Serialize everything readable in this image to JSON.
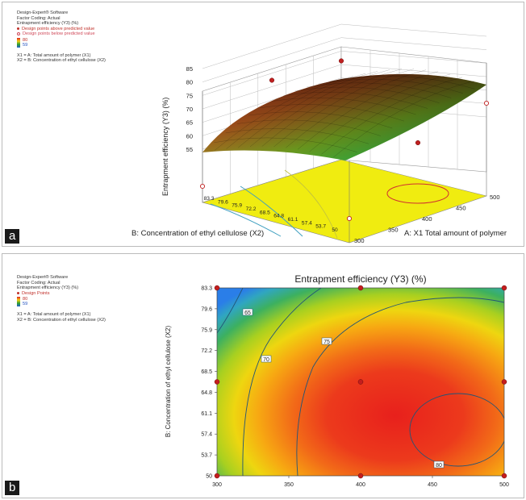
{
  "panel_a": {
    "label": "a",
    "info": {
      "software": "Design-Expert® Software",
      "coding": "Factor Coding: Actual",
      "response": "Entrapment efficiency (Y3) (%)",
      "legend_above": "Design points above predicted value",
      "legend_below": "Design points below predicted value",
      "scale_max": "80",
      "scale_min": "59",
      "x1": "X1 = A: Total amount of polymer (X1)",
      "x2": "X2 = B: Concentration of ethyl cellulose (X2)"
    }
  },
  "panel_b": {
    "label": "b",
    "info": {
      "software": "Design-Expert® Software",
      "coding": "Factor Coding: Actual",
      "response": "Entrapment efficiency (Y3) (%)",
      "legend_points": "Design Points",
      "scale_max": "80",
      "scale_min": "59",
      "x1": "X1 = A: Total amount of polymer (X1)",
      "x2": "X2 = B: Concentration of ethyl cellulose (X2)"
    }
  },
  "chart_data": [
    {
      "type": "surface",
      "zlabel": "Entrapment efficiency (Y3) (%)",
      "xlabel": "A: X1 Total amount of polymer",
      "ylabel": "B: Concentration of ethyl cellulose (X2)",
      "z_ticks": [
        "55",
        "60",
        "65",
        "70",
        "75",
        "80",
        "85"
      ],
      "x_ticks": [
        "300",
        "350",
        "400",
        "450",
        "500"
      ],
      "y_ticks": [
        "83.3",
        "79.6",
        "75.9",
        "72.2",
        "68.5",
        "64.8",
        "61.1",
        "57.4",
        "53.7",
        "50"
      ],
      "zlim": [
        55,
        85
      ],
      "xlim": [
        300,
        500
      ],
      "ylim": [
        50,
        83.3
      ],
      "design_points": [
        {
          "x": 300,
          "y": 83.3,
          "z": 59,
          "position": "below"
        },
        {
          "x": 500,
          "y": 83.3,
          "z": 79.5,
          "position": "above"
        },
        {
          "x": 400,
          "y": 83.3,
          "z": 80,
          "position": "above"
        },
        {
          "x": 300,
          "y": 50,
          "z": 61,
          "position": "below"
        },
        {
          "x": 500,
          "y": 50,
          "z": 78,
          "position": "below"
        },
        {
          "x": 400,
          "y": 50,
          "z": 74,
          "position": "above"
        }
      ]
    },
    {
      "type": "contour",
      "title": "Entrapment efficiency (Y3) (%)",
      "ylabel": "B: Concentration of ethyl cellulose (X2)",
      "xlabel": "",
      "x_ticks": [
        "300",
        "350",
        "400",
        "450",
        "500"
      ],
      "y_ticks": [
        "83.3",
        "79.6",
        "75.9",
        "72.2",
        "68.5",
        "64.8",
        "61.1",
        "57.4",
        "53.7",
        "50"
      ],
      "xlim": [
        300,
        500
      ],
      "ylim": [
        50,
        83.3
      ],
      "contours": [
        {
          "label": "65",
          "level": 65
        },
        {
          "label": "70",
          "level": 70
        },
        {
          "label": "75",
          "level": 75
        },
        {
          "label": "80",
          "level": 80
        }
      ],
      "design_points": [
        {
          "x": 300,
          "y": 83.3
        },
        {
          "x": 400,
          "y": 83.3
        },
        {
          "x": 500,
          "y": 83.3
        },
        {
          "x": 300,
          "y": 66.65
        },
        {
          "x": 400,
          "y": 66.65
        },
        {
          "x": 500,
          "y": 66.65
        },
        {
          "x": 300,
          "y": 50
        },
        {
          "x": 400,
          "y": 50
        },
        {
          "x": 500,
          "y": 50
        }
      ]
    }
  ]
}
